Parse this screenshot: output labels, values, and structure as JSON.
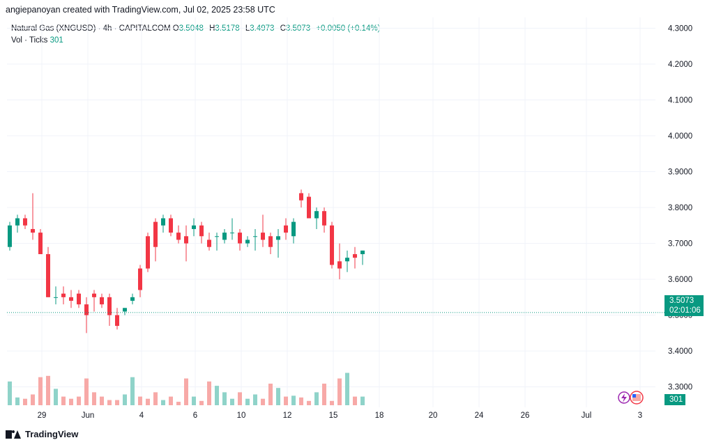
{
  "header": {
    "credit": "angiepanoyan created with TradingView.com, Jul 02, 2025 23:58 UTC"
  },
  "legend": {
    "symbol": "Natural Gas (XNGUSD) · 4h · CAPITALCOM",
    "open_label": "O",
    "open": "3.5048",
    "high_label": "H",
    "high": "3.5178",
    "low_label": "L",
    "low": "3.4973",
    "close_label": "C",
    "close": "3.5073",
    "change": "+0.0050 (+0.14%)",
    "vol_label": "Vol · Ticks",
    "vol": "301"
  },
  "price_tag": {
    "price": "3.5073",
    "countdown": "02:01:06"
  },
  "volume_tag": "301",
  "footer": {
    "brand": "TradingView"
  },
  "colors": {
    "up": "#089981",
    "down": "#f23645",
    "vol_up": "#8fd3c9",
    "vol_down": "#f7a9a7",
    "grid": "#f0f3fa"
  },
  "icons": [
    "lightning-icon",
    "us-flag-icon"
  ],
  "chart_data": {
    "type": "candlestick",
    "title": "Natural Gas (XNGUSD) · 4h · CAPITALCOM",
    "y_ticks": [
      "4.3000",
      "4.2000",
      "4.1000",
      "4.0000",
      "3.9000",
      "3.8000",
      "3.7000",
      "3.6000",
      "3.5000",
      "3.4000",
      "3.3000"
    ],
    "ylim": [
      3.243,
      4.33
    ],
    "x_ticks": [
      {
        "label": "29",
        "bar": 4
      },
      {
        "label": "Jun",
        "bar": 10
      },
      {
        "label": "4",
        "bar": 17
      },
      {
        "label": "6",
        "bar": 24
      },
      {
        "label": "10",
        "bar": 30
      },
      {
        "label": "12",
        "bar": 36
      },
      {
        "label": "15",
        "bar": 42
      },
      {
        "label": "18",
        "bar": 48
      },
      {
        "label": "20",
        "bar": 55
      },
      {
        "label": "24",
        "bar": 61
      },
      {
        "label": "26",
        "bar": 67
      },
      {
        "label": "Jul",
        "bar": 75
      },
      {
        "label": "3",
        "bar": 82
      }
    ],
    "last_price": 3.5073,
    "candles": [
      [
        3.69,
        3.76,
        3.68,
        3.75
      ],
      [
        3.75,
        3.78,
        3.73,
        3.77
      ],
      [
        3.77,
        3.78,
        3.74,
        3.75
      ],
      [
        3.74,
        3.84,
        3.71,
        3.73
      ],
      [
        3.73,
        3.74,
        3.67,
        3.67
      ],
      [
        3.67,
        3.69,
        3.55,
        3.55
      ],
      [
        3.55,
        3.58,
        3.53,
        3.55
      ],
      [
        3.56,
        3.58,
        3.53,
        3.55
      ],
      [
        3.55,
        3.57,
        3.52,
        3.54
      ],
      [
        3.56,
        3.57,
        3.52,
        3.53
      ],
      [
        3.53,
        3.55,
        3.45,
        3.5
      ],
      [
        3.56,
        3.57,
        3.51,
        3.55
      ],
      [
        3.55,
        3.56,
        3.52,
        3.53
      ],
      [
        3.55,
        3.56,
        3.47,
        3.5
      ],
      [
        3.5,
        3.52,
        3.46,
        3.47
      ],
      [
        3.51,
        3.52,
        3.5,
        3.52
      ],
      [
        3.54,
        3.56,
        3.53,
        3.55
      ],
      [
        3.63,
        3.64,
        3.55,
        3.57
      ],
      [
        3.72,
        3.73,
        3.62,
        3.63
      ],
      [
        3.76,
        3.77,
        3.65,
        3.69
      ],
      [
        3.75,
        3.78,
        3.73,
        3.77
      ],
      [
        3.77,
        3.78,
        3.72,
        3.73
      ],
      [
        3.73,
        3.75,
        3.7,
        3.71
      ],
      [
        3.72,
        3.75,
        3.65,
        3.7
      ],
      [
        3.74,
        3.77,
        3.72,
        3.75
      ],
      [
        3.75,
        3.76,
        3.7,
        3.72
      ],
      [
        3.71,
        3.73,
        3.68,
        3.69
      ],
      [
        3.72,
        3.73,
        3.68,
        3.72
      ],
      [
        3.71,
        3.74,
        3.7,
        3.73
      ],
      [
        3.73,
        3.77,
        3.71,
        3.73
      ],
      [
        3.73,
        3.74,
        3.68,
        3.7
      ],
      [
        3.7,
        3.72,
        3.69,
        3.71
      ],
      [
        3.72,
        3.74,
        3.68,
        3.72
      ],
      [
        3.73,
        3.78,
        3.69,
        3.71
      ],
      [
        3.72,
        3.73,
        3.67,
        3.69
      ],
      [
        3.71,
        3.74,
        3.66,
        3.72
      ],
      [
        3.75,
        3.77,
        3.71,
        3.73
      ],
      [
        3.72,
        3.77,
        3.7,
        3.76
      ],
      [
        3.84,
        3.85,
        3.8,
        3.82
      ],
      [
        3.83,
        3.84,
        3.77,
        3.77
      ],
      [
        3.77,
        3.8,
        3.74,
        3.79
      ],
      [
        3.79,
        3.8,
        3.73,
        3.75
      ],
      [
        3.75,
        3.76,
        3.63,
        3.64
      ],
      [
        3.65,
        3.7,
        3.6,
        3.63
      ],
      [
        3.65,
        3.68,
        3.62,
        3.66
      ],
      [
        3.67,
        3.69,
        3.63,
        3.66
      ],
      [
        3.67,
        3.68,
        3.64,
        3.68
      ]
    ],
    "volumes": [
      0.55,
      0.18,
      0.15,
      0.25,
      0.65,
      0.68,
      0.38,
      0.2,
      0.15,
      0.2,
      0.62,
      0.3,
      0.2,
      0.12,
      0.12,
      0.25,
      0.65,
      0.2,
      0.15,
      0.3,
      0.12,
      0.2,
      0.08,
      0.62,
      0.2,
      0.1,
      0.55,
      0.45,
      0.3,
      0.15,
      0.3,
      0.15,
      0.25,
      0.15,
      0.5,
      0.4,
      0.2,
      0.22,
      0.18,
      0.1,
      0.3,
      0.5,
      0.1,
      0.62,
      0.75,
      0.2,
      0.2
    ]
  }
}
